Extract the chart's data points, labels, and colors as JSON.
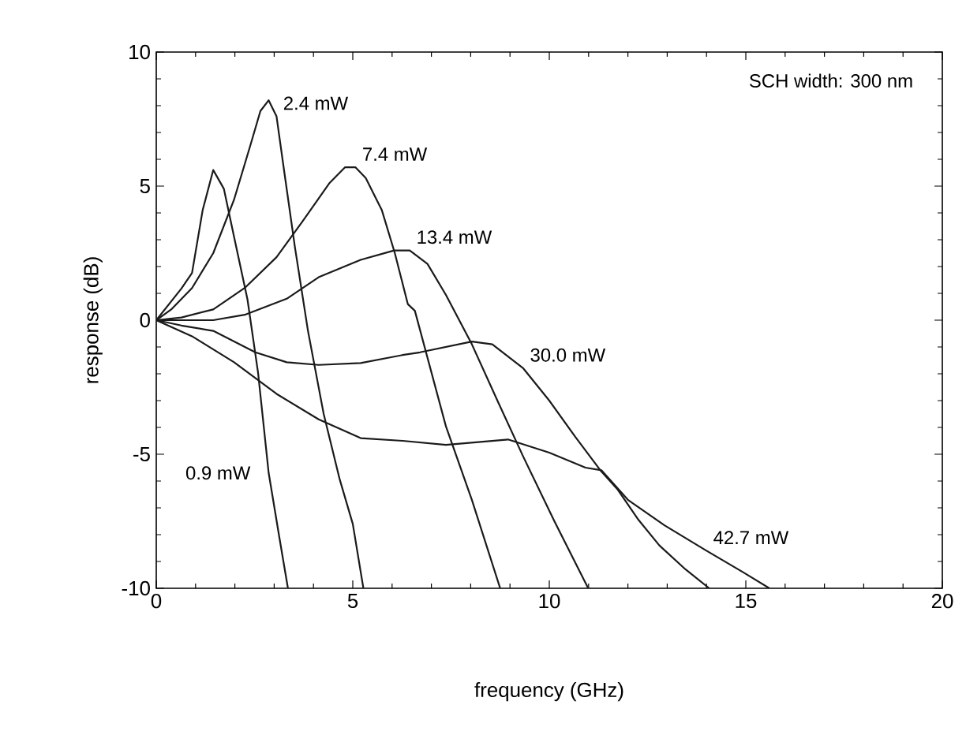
{
  "chart_data": {
    "type": "line",
    "xlabel": "frequency (GHz)",
    "ylabel": "response (dB)",
    "xlim": [
      0,
      20
    ],
    "ylim": [
      -10,
      10
    ],
    "xticks": [
      0,
      5,
      10,
      15,
      20
    ],
    "yticks": [
      -10,
      -5,
      0,
      5,
      10
    ],
    "grid": false,
    "marker": "none",
    "line_style": "solid",
    "series": [
      {
        "color": "#1a1a1a",
        "x": [
          0,
          0.64,
          0.91,
          1.18,
          1.45,
          1.72,
          1.98,
          2.32,
          2.59,
          2.86,
          3.12,
          3.35
        ],
        "values": [
          0,
          1.18,
          1.76,
          4.1,
          5.6,
          4.9,
          3.1,
          0.78,
          -1.96,
          -5.7,
          -8.0,
          -10
        ]
      },
      {
        "color": "#1a1a1a",
        "x": [
          0,
          0.38,
          0.91,
          1.45,
          1.98,
          2.39,
          2.65,
          2.86,
          3.06,
          3.26,
          3.53,
          3.86,
          4.26,
          4.66,
          5.0,
          5.27
        ],
        "values": [
          0,
          0.4,
          1.2,
          2.5,
          4.5,
          6.5,
          7.8,
          8.2,
          7.6,
          5.5,
          2.7,
          -0.4,
          -3.5,
          -5.9,
          -7.6,
          -10
        ]
      },
      {
        "color": "#1a1a1a",
        "x": [
          0,
          0.64,
          1.45,
          2.25,
          3.06,
          3.73,
          4.4,
          4.8,
          5.07,
          5.33,
          5.74,
          6.07,
          6.4,
          6.58,
          7.37,
          8.03,
          8.75
        ],
        "values": [
          0,
          0.1,
          0.4,
          1.2,
          2.35,
          3.7,
          5.1,
          5.7,
          5.7,
          5.3,
          4.1,
          2.5,
          0.6,
          0.35,
          -3.96,
          -6.7,
          -10
        ]
      },
      {
        "color": "#1a1a1a",
        "x": [
          0,
          1.45,
          2.25,
          3.32,
          4.13,
          5.2,
          6.05,
          6.45,
          6.9,
          7.37,
          8.03,
          8.68,
          9.34,
          10.13,
          10.99
        ],
        "values": [
          0,
          0,
          0.2,
          0.8,
          1.6,
          2.25,
          2.6,
          2.6,
          2.1,
          0.94,
          -0.9,
          -3.0,
          -5.1,
          -7.5,
          -10
        ]
      },
      {
        "color": "#1a1a1a",
        "x": [
          0,
          0.64,
          1.45,
          2.52,
          3.32,
          4.13,
          5.2,
          6.27,
          6.71,
          8.03,
          8.55,
          9.34,
          10.0,
          10.66,
          11.3,
          11.73,
          12.27,
          12.8,
          13.47,
          14.07
        ],
        "values": [
          0,
          -0.2,
          -0.4,
          -1.2,
          -1.57,
          -1.67,
          -1.6,
          -1.3,
          -1.2,
          -0.8,
          -0.9,
          -1.8,
          -3.0,
          -4.35,
          -5.6,
          -6.3,
          -7.45,
          -8.4,
          -9.3,
          -10
        ]
      },
      {
        "color": "#1a1a1a",
        "x": [
          0,
          0.91,
          1.98,
          3.06,
          4.13,
          5.2,
          6.27,
          7.37,
          8.95,
          10.0,
          10.92,
          11.33,
          12.0,
          12.93,
          14.0,
          14.93,
          15.6
        ],
        "values": [
          0,
          -0.6,
          -1.57,
          -2.75,
          -3.7,
          -4.4,
          -4.5,
          -4.65,
          -4.45,
          -4.94,
          -5.5,
          -5.6,
          -6.7,
          -7.65,
          -8.6,
          -9.4,
          -10
        ]
      }
    ],
    "annotations": [
      {
        "text": "0.9 mW",
        "x": 2.86,
        "y": -5.7
      },
      {
        "text": "2.4 mW",
        "x": 3.06,
        "y": 7.6
      },
      {
        "text": "7.4 mW",
        "x": 5.07,
        "y": 5.7
      },
      {
        "text": "13.4 mW",
        "x": 6.45,
        "y": 2.6
      },
      {
        "text": "30.0 mW",
        "x": 9.34,
        "y": -1.8
      },
      {
        "text": "42.7 mW",
        "x": 14.0,
        "y": -8.6
      },
      "SCH width: 300 nm"
    ]
  }
}
